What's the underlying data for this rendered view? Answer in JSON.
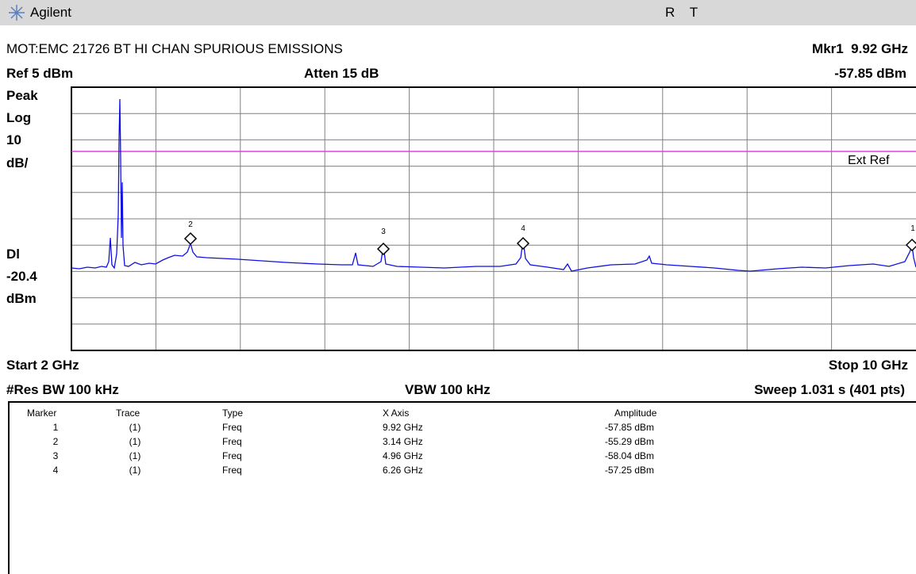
{
  "header": {
    "brand": "Agilent",
    "status": "R T"
  },
  "title": "MOT:EMC 21726 BT HI CHAN SPURIOUS EMISSIONS",
  "marker_readout": {
    "frequency": "Mkr1  9.92 GHz",
    "amplitude": "-57.85 dBm"
  },
  "ref": "Ref 5 dBm",
  "atten": "Atten 15 dB",
  "left_labels": [
    "Peak",
    "Log",
    "10",
    "dB/",
    "Dl",
    "-20.4",
    "dBm"
  ],
  "ext_ref": "Ext Ref",
  "start": "Start 2 GHz",
  "stop": "Stop 10 GHz",
  "res_bw": "#Res BW 100 kHz",
  "vbw": "VBW 100 kHz",
  "sweep": "Sweep 1.031 s (401 pts)",
  "table": {
    "columns": [
      "Marker",
      "Trace",
      "Type",
      "X Axis",
      "Amplitude"
    ],
    "rows": [
      [
        "1",
        "(1)",
        "Freq",
        "9.92 GHz",
        "-57.85 dBm"
      ],
      [
        "2",
        "(1)",
        "Freq",
        "3.14 GHz",
        "-55.29 dBm"
      ],
      [
        "3",
        "(1)",
        "Freq",
        "4.96 GHz",
        "-58.04 dBm"
      ],
      [
        "4",
        "(1)",
        "Freq",
        "6.26 GHz",
        "-57.25 dBm"
      ]
    ]
  }
}
